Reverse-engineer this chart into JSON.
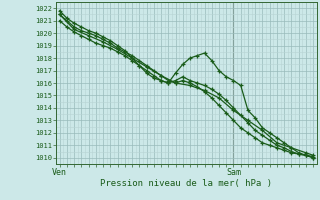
{
  "bg_color": "#cce8e8",
  "grid_color_major": "#99bbbb",
  "grid_color_minor": "#b8d4d4",
  "line_color": "#1a5c1a",
  "marker_color": "#1a5c1a",
  "ylabel_ticks": [
    1010,
    1011,
    1012,
    1013,
    1014,
    1015,
    1016,
    1017,
    1018,
    1019,
    1020,
    1021,
    1022
  ],
  "ylim": [
    1009.5,
    1022.5
  ],
  "xlabel": "Pression niveau de la mer( hPa )",
  "xtick_labels": [
    "Ven",
    "Sam"
  ],
  "xtick_positions": [
    0,
    24
  ],
  "xlim": [
    -0.5,
    35.5
  ],
  "vline_x": 24,
  "series1_x": [
    0,
    1,
    2,
    3,
    4,
    5,
    6,
    7,
    8,
    9,
    10,
    11,
    12,
    13,
    14,
    15,
    16,
    17,
    18,
    19,
    20,
    21,
    22,
    23,
    24,
    25,
    26,
    27,
    28,
    29,
    30,
    31,
    32,
    33,
    34,
    35
  ],
  "series1_y": [
    1021.5,
    1021.0,
    1020.5,
    1020.2,
    1020.0,
    1019.8,
    1019.5,
    1019.2,
    1018.8,
    1018.5,
    1018.2,
    1017.8,
    1017.4,
    1017.0,
    1016.6,
    1016.2,
    1016.0,
    1016.2,
    1016.0,
    1015.7,
    1015.3,
    1014.8,
    1014.2,
    1013.6,
    1013.0,
    1012.4,
    1012.0,
    1011.6,
    1011.2,
    1011.0,
    1010.8,
    1010.6,
    1010.4,
    1010.3,
    1010.2,
    1010.1
  ],
  "series2_x": [
    0,
    1,
    2,
    3,
    4,
    5,
    6,
    7,
    8,
    9,
    10,
    11,
    12,
    13,
    14,
    15,
    16,
    17,
    18,
    19,
    20,
    21,
    22,
    23,
    24,
    25,
    26,
    27,
    28,
    29,
    30,
    31,
    32,
    33,
    34,
    35
  ],
  "series2_y": [
    1021.0,
    1020.5,
    1020.1,
    1019.8,
    1019.5,
    1019.2,
    1019.0,
    1018.8,
    1018.5,
    1018.2,
    1017.8,
    1017.4,
    1017.0,
    1016.6,
    1016.2,
    1016.0,
    1016.2,
    1016.5,
    1016.2,
    1016.0,
    1015.8,
    1015.5,
    1015.1,
    1014.6,
    1014.0,
    1013.4,
    1012.8,
    1012.2,
    1011.8,
    1011.4,
    1011.0,
    1010.8,
    1010.5,
    1010.3,
    1010.2,
    1010.0
  ],
  "series3_x": [
    0,
    1,
    2,
    3,
    4,
    5,
    6,
    7,
    8,
    9,
    10,
    11,
    12,
    13,
    14,
    15,
    16,
    17,
    18,
    19,
    20,
    21,
    22,
    23,
    24,
    25,
    26,
    27,
    28,
    29,
    30,
    31,
    32,
    33,
    34,
    35
  ],
  "series3_y": [
    1021.8,
    1021.2,
    1020.8,
    1020.5,
    1020.2,
    1020.0,
    1019.7,
    1019.4,
    1019.0,
    1018.6,
    1018.0,
    1017.4,
    1016.8,
    1016.4,
    1016.2,
    1016.0,
    1016.8,
    1017.5,
    1018.0,
    1018.2,
    1018.4,
    1017.8,
    1017.0,
    1016.5,
    1016.2,
    1015.8,
    1013.8,
    1013.2,
    1012.4,
    1012.0,
    1011.6,
    1011.2,
    1010.8,
    1010.4,
    1010.2,
    1010.0
  ],
  "series4_x": [
    0,
    2,
    4,
    6,
    8,
    10,
    12,
    14,
    16,
    18,
    20,
    22,
    24,
    26,
    28,
    30,
    32,
    34,
    35
  ],
  "series4_y": [
    1021.5,
    1020.3,
    1019.8,
    1019.3,
    1018.7,
    1018.0,
    1017.3,
    1016.6,
    1016.0,
    1015.8,
    1015.4,
    1014.8,
    1013.8,
    1013.0,
    1012.2,
    1011.2,
    1010.8,
    1010.4,
    1010.2
  ]
}
